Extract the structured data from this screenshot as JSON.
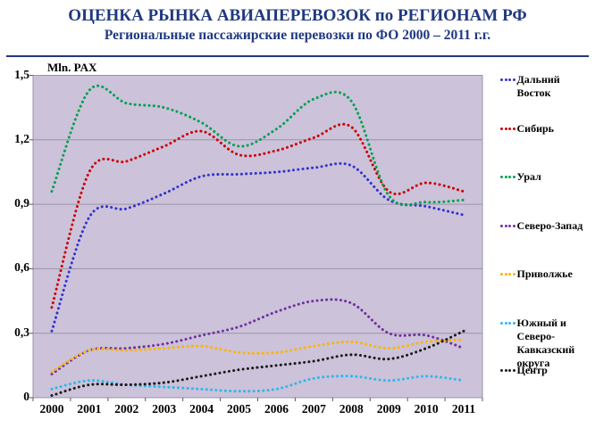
{
  "title": "ОЦЕНКА РЫНКА АВИАПЕРЕВОЗОК по РЕГИОНАМ РФ",
  "subtitle": "Региональные пассажирские перевозки по ФО 2000 – 2011 г.г.",
  "units_label": "Mln. PAX",
  "colors": {
    "title_navy": "#1F3880",
    "divider_navy": "#1F3880",
    "plot_background": "#CCC2DA",
    "gridline": "#9A94A6",
    "tick": "#5A5566"
  },
  "chart_data": {
    "type": "line",
    "line_style": "dotted-smooth",
    "title": "ОЦЕНКА РЫНКА АВИАПЕРЕВОЗОК по РЕГИОНАМ РФ",
    "subtitle": "Региональные пассажирские перевозки по ФО 2000 – 2011 г.г.",
    "ylabel": "Mln. PAX",
    "xlabel": "",
    "grid": true,
    "legend_position": "right",
    "ylim": [
      0,
      1.5
    ],
    "ytick_values": [
      0,
      0.3,
      0.6,
      0.9,
      1.2,
      1.5
    ],
    "ytick_labels": [
      "0",
      "0,3",
      "0,6",
      "0,9",
      "1,2",
      "1,5"
    ],
    "categories": [
      "2000",
      "2001",
      "2002",
      "2003",
      "2004",
      "2005",
      "2006",
      "2007",
      "2008",
      "2009",
      "2010",
      "2011"
    ],
    "series": [
      {
        "name": "Дальний Восток",
        "color": "#3333CC",
        "values": [
          0.31,
          0.84,
          0.88,
          0.95,
          1.03,
          1.04,
          1.05,
          1.07,
          1.08,
          0.92,
          0.89,
          0.85
        ]
      },
      {
        "name": "Сибирь",
        "color": "#CC0000",
        "values": [
          0.42,
          1.05,
          1.1,
          1.17,
          1.24,
          1.13,
          1.15,
          1.21,
          1.26,
          0.96,
          1.0,
          0.96
        ]
      },
      {
        "name": "Урал",
        "color": "#00A14E",
        "values": [
          0.96,
          1.43,
          1.37,
          1.35,
          1.28,
          1.17,
          1.25,
          1.39,
          1.38,
          0.94,
          0.91,
          0.92
        ]
      },
      {
        "name": "Северо-Запад",
        "color": "#7030A0",
        "values": [
          0.11,
          0.22,
          0.23,
          0.25,
          0.29,
          0.33,
          0.4,
          0.45,
          0.44,
          0.3,
          0.29,
          0.23
        ]
      },
      {
        "name": "Приволжье",
        "color": "#FFB400",
        "values": [
          0.12,
          0.22,
          0.22,
          0.23,
          0.24,
          0.21,
          0.21,
          0.24,
          0.26,
          0.23,
          0.26,
          0.27
        ]
      },
      {
        "name": "Южный и Северо-Кавказский округа",
        "color": "#2EB8EA",
        "values": [
          0.04,
          0.08,
          0.06,
          0.05,
          0.04,
          0.03,
          0.04,
          0.09,
          0.1,
          0.08,
          0.1,
          0.08
        ]
      },
      {
        "name": "Центр",
        "color": "#1A1A1A",
        "values": [
          0.01,
          0.06,
          0.06,
          0.07,
          0.1,
          0.13,
          0.15,
          0.17,
          0.2,
          0.18,
          0.23,
          0.31
        ]
      }
    ]
  }
}
